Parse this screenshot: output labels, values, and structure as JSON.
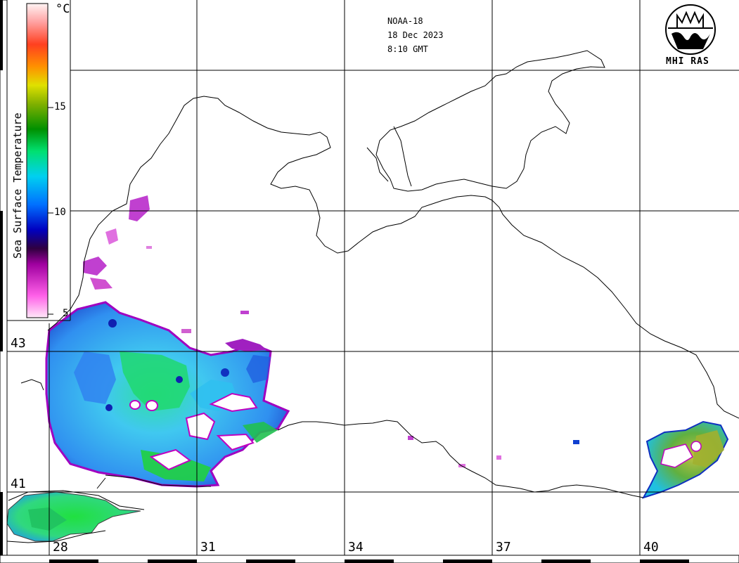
{
  "header": {
    "satellite": "NOAA-18",
    "date": "18 Dec 2023",
    "time": "8:10 GMT"
  },
  "logo": {
    "name": "mhi-ras-logo",
    "text": "MHI RAS"
  },
  "colorbar": {
    "title": "Sea Surface Temperature",
    "unit": "°C",
    "ticks": [
      "15",
      "10",
      "5"
    ],
    "colors": [
      "#ffd0f0",
      "#ff50e0",
      "#a000a0",
      "#200030",
      "#0000c0",
      "#0080ff",
      "#00e0f0",
      "#00e060",
      "#008000",
      "#a0c000",
      "#e0e000",
      "#ff8000",
      "#ff4000",
      "#ffa0a0",
      "#fff0f0"
    ]
  },
  "grid": {
    "longitude_labels": [
      "28",
      "31",
      "34",
      "37",
      "40"
    ],
    "latitude_labels": [
      "43",
      "41"
    ]
  },
  "palette": {
    "land_line": "#000000",
    "grid_line": "#000000",
    "cloud": "#ffffff"
  }
}
